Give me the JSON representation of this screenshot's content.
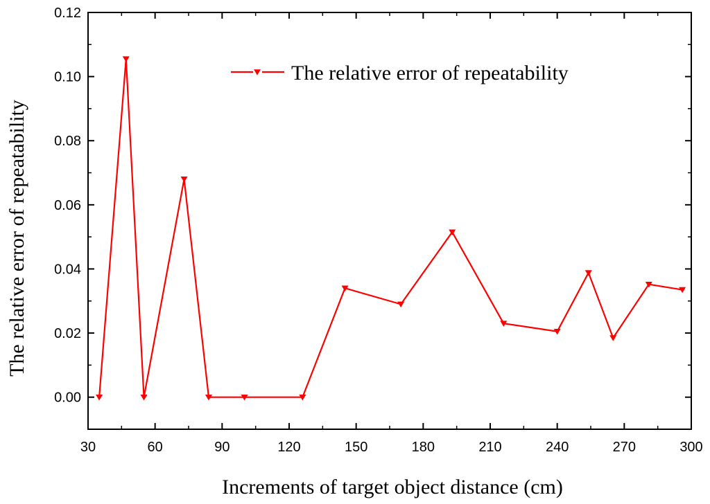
{
  "chart_data": {
    "type": "line",
    "title": "",
    "xlabel": "Increments of target object distance (cm)",
    "ylabel": "The relative error of repeatability",
    "xlim": [
      30,
      300
    ],
    "ylim": [
      -0.01,
      0.12
    ],
    "x_ticks": [
      30,
      60,
      90,
      120,
      150,
      180,
      210,
      240,
      270,
      300
    ],
    "x_tick_labels": [
      "30",
      "60",
      "90",
      "120",
      "150",
      "180",
      "210",
      "240",
      "270",
      "300"
    ],
    "y_ticks": [
      0.0,
      0.02,
      0.04,
      0.06,
      0.08,
      0.1,
      0.12
    ],
    "y_tick_labels": [
      "0.00",
      "0.02",
      "0.04",
      "0.06",
      "0.08",
      "0.10",
      "0.12"
    ],
    "grid": false,
    "legend_position": "top-right",
    "series": [
      {
        "name": "The relative error of repeatability",
        "color": "#ff0000",
        "marker": "triangle-down",
        "x": [
          35,
          47,
          55,
          73,
          84,
          100,
          126,
          145,
          170,
          193,
          216,
          240,
          254,
          265,
          281,
          296
        ],
        "y": [
          0.0,
          0.1055,
          0.0,
          0.068,
          0.0,
          0.0,
          0.0,
          0.034,
          0.029,
          0.0515,
          0.023,
          0.0205,
          0.0388,
          0.0185,
          0.0352,
          0.0335
        ]
      }
    ]
  }
}
